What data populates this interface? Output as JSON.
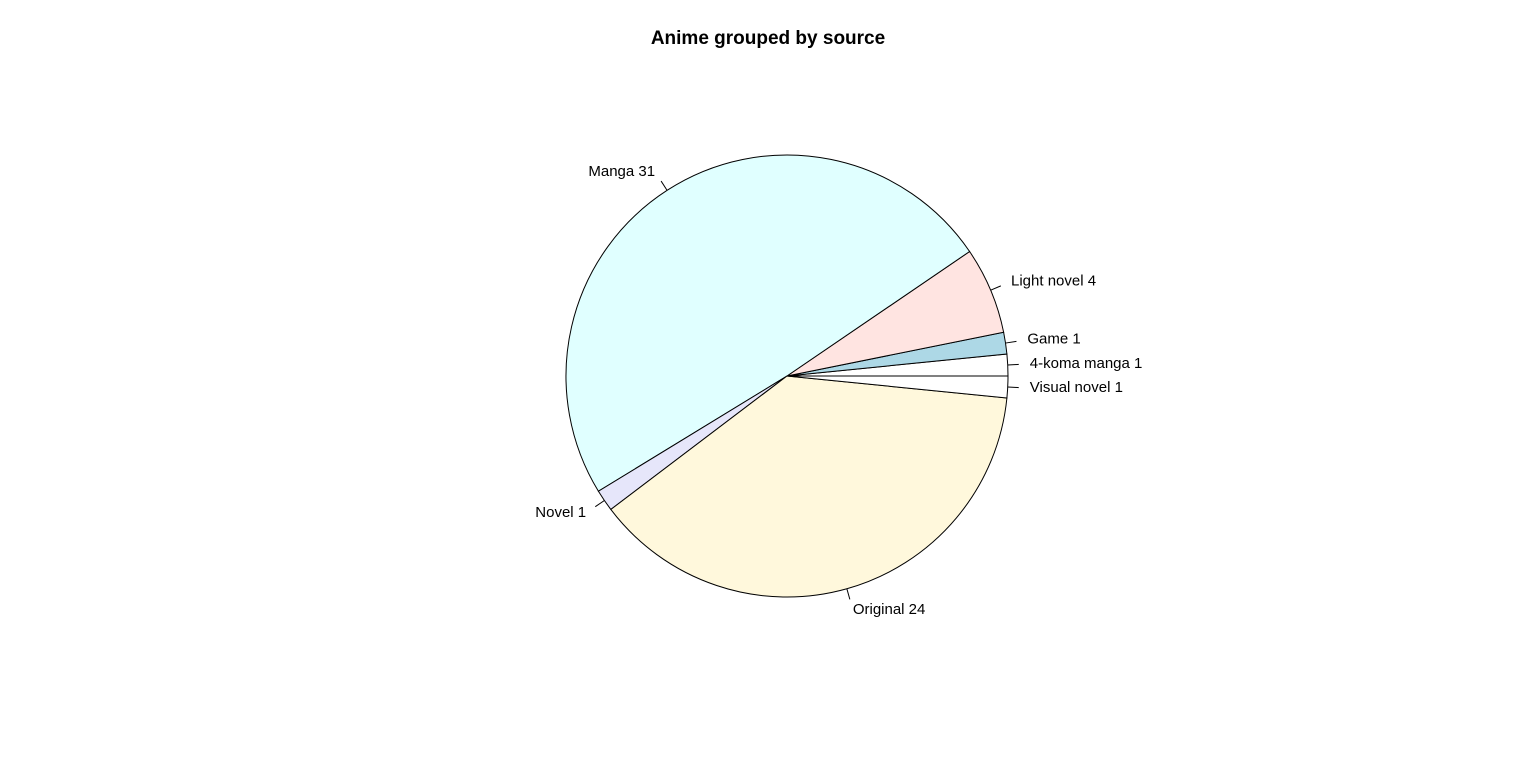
{
  "chart_data": {
    "type": "pie",
    "title": "Anime grouped by source",
    "direction": "counterclockwise",
    "start_angle_deg": 0,
    "slices": [
      {
        "label": "4-koma manga 1",
        "value": 1,
        "color": "#ffffff"
      },
      {
        "label": "Game 1",
        "value": 1,
        "color": "#add8e6"
      },
      {
        "label": "Light novel 4",
        "value": 4,
        "color": "#ffe4e1"
      },
      {
        "label": "Manga 31",
        "value": 31,
        "color": "#e0ffff"
      },
      {
        "label": "Novel 1",
        "value": 1,
        "color": "#e6e6fa"
      },
      {
        "label": "Original 24",
        "value": 24,
        "color": "#fff8dc"
      },
      {
        "label": "Visual novel 1",
        "value": 1,
        "color": "#ffffff"
      }
    ]
  }
}
